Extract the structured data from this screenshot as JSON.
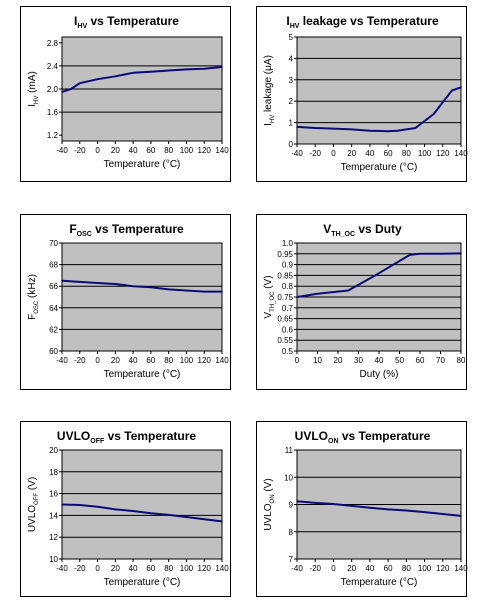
{
  "charts": [
    {
      "type": "line",
      "title": "I",
      "title_sub": "HV",
      "title_rest": " vs Temperature",
      "xlabel": "Temperature (°C)",
      "ylabel": "I",
      "ylabel_sub": "HV",
      "ylabel_rest": " (mA)",
      "xlim": [
        -40,
        140
      ],
      "ylim": [
        1.1,
        2.9
      ],
      "xticks": [
        -40,
        -20,
        0,
        20,
        40,
        60,
        80,
        100,
        120,
        140
      ],
      "xtick_labels": [
        "-40",
        "-20",
        "0",
        "20",
        "40",
        "60",
        "80",
        "100",
        "120",
        "140"
      ],
      "yticks": [
        1.2,
        1.6,
        2.0,
        2.4,
        2.8
      ],
      "ytick_labels": [
        "1.2",
        "1.6",
        "2.0",
        "2.4",
        "2.8"
      ],
      "x": [
        -40,
        -30,
        -20,
        0,
        20,
        40,
        60,
        80,
        100,
        120,
        140
      ],
      "y": [
        1.95,
        2.0,
        2.1,
        2.17,
        2.22,
        2.28,
        2.3,
        2.32,
        2.34,
        2.35,
        2.38
      ],
      "grid": "horizontal",
      "line_color": "#0a0a78",
      "plot_bg": "#c0c0c0"
    },
    {
      "type": "line",
      "title": "I",
      "title_sub": "HV",
      "title_rest": " leakage vs Temperature",
      "xlabel": "Temperature (°C)",
      "ylabel": "I",
      "ylabel_sub": "HV",
      "ylabel_rest": " leakage (μA)",
      "xlim": [
        -40,
        140
      ],
      "ylim": [
        0,
        5
      ],
      "xticks": [
        -40,
        -20,
        0,
        20,
        40,
        60,
        80,
        100,
        120,
        140
      ],
      "xtick_labels": [
        "-40",
        "-20",
        "0",
        "20",
        "40",
        "60",
        "80",
        "100",
        "120",
        "140"
      ],
      "yticks": [
        0,
        1,
        2,
        3,
        4,
        5
      ],
      "ytick_labels": [
        "0",
        "1",
        "2",
        "3",
        "4",
        "5"
      ],
      "x": [
        -40,
        -20,
        0,
        20,
        40,
        60,
        70,
        90,
        110,
        130,
        140
      ],
      "y": [
        0.8,
        0.75,
        0.72,
        0.68,
        0.62,
        0.6,
        0.62,
        0.75,
        1.4,
        2.5,
        2.65
      ],
      "grid": "horizontal",
      "line_color": "#0a0a78",
      "plot_bg": "#c0c0c0"
    },
    {
      "type": "line",
      "title": "F",
      "title_sub": "OSC",
      "title_rest": " vs Temperature",
      "xlabel": "Temperature (°C)",
      "ylabel": "F",
      "ylabel_sub": "OSC",
      "ylabel_rest": " (kHz)",
      "xlim": [
        -40,
        140
      ],
      "ylim": [
        60,
        70
      ],
      "xticks": [
        -40,
        -20,
        0,
        20,
        40,
        60,
        80,
        100,
        120,
        140
      ],
      "xtick_labels": [
        "-40",
        "-20",
        "0",
        "20",
        "40",
        "60",
        "80",
        "100",
        "120",
        "140"
      ],
      "yticks": [
        60,
        62,
        64,
        66,
        68,
        70
      ],
      "ytick_labels": [
        "60",
        "62",
        "64",
        "66",
        "68",
        "70"
      ],
      "x": [
        -40,
        -20,
        0,
        20,
        40,
        60,
        80,
        100,
        120,
        140
      ],
      "y": [
        66.5,
        66.4,
        66.3,
        66.2,
        66.0,
        65.9,
        65.7,
        65.6,
        65.5,
        65.5
      ],
      "grid": "horizontal",
      "line_color": "#0a0a78",
      "plot_bg": "#c0c0c0"
    },
    {
      "type": "line",
      "title": "V",
      "title_sub": "TH_OC",
      "title_rest": " vs Duty",
      "xlabel": "Duty (%)",
      "ylabel": "V",
      "ylabel_sub": "TH_OC",
      "ylabel_rest": " (V)",
      "xlim": [
        0,
        80
      ],
      "ylim": [
        0.5,
        1.0
      ],
      "xticks": [
        0,
        10,
        20,
        30,
        40,
        50,
        60,
        70,
        80
      ],
      "xtick_labels": [
        "0",
        "10",
        "20",
        "30",
        "40",
        "50",
        "60",
        "70",
        "80"
      ],
      "yticks": [
        0.5,
        0.55,
        0.6,
        0.65,
        0.7,
        0.75,
        0.8,
        0.85,
        0.9,
        0.95,
        1.0
      ],
      "ytick_labels": [
        "0.5",
        "0.55",
        "0.6",
        "0.65",
        "0.7",
        "0.75",
        "0.8",
        "0.85",
        "0.9",
        "0.95",
        "1.0"
      ],
      "x": [
        0,
        10,
        25,
        40,
        55,
        60,
        70,
        80
      ],
      "y": [
        0.75,
        0.765,
        0.78,
        0.86,
        0.945,
        0.95,
        0.95,
        0.952
      ],
      "grid": "horizontal",
      "line_color": "#0a0a78",
      "plot_bg": "#c0c0c0"
    },
    {
      "type": "line",
      "title": "UVLO",
      "title_sub": "OFF",
      "title_rest": " vs Temperature",
      "title_prefix": "UVLO_",
      "xlabel": "Temperature (°C)",
      "ylabel": "UVLO",
      "ylabel_sub": "OFF",
      "ylabel_rest": " (V)",
      "xlim": [
        -40,
        140
      ],
      "ylim": [
        10,
        20
      ],
      "xticks": [
        -40,
        -20,
        0,
        20,
        40,
        60,
        80,
        100,
        120,
        140
      ],
      "xtick_labels": [
        "-40",
        "-20",
        "0",
        "20",
        "40",
        "60",
        "80",
        "100",
        "120",
        "140"
      ],
      "yticks": [
        10,
        12,
        14,
        16,
        18,
        20
      ],
      "ytick_labels": [
        "10",
        "12",
        "14",
        "16",
        "18",
        "20"
      ],
      "x": [
        -40,
        -20,
        0,
        20,
        40,
        60,
        80,
        100,
        120,
        140
      ],
      "y": [
        15.0,
        14.95,
        14.8,
        14.55,
        14.4,
        14.2,
        14.05,
        13.85,
        13.65,
        13.45
      ],
      "grid": "horizontal",
      "line_color": "#0a0a78",
      "plot_bg": "#c0c0c0"
    },
    {
      "type": "line",
      "title": "UVLO",
      "title_sub": "ON",
      "title_rest": " vs Temperature",
      "xlabel": "Temperature (°C)",
      "ylabel": "UVLO",
      "ylabel_sub": "ON",
      "ylabel_rest": " (V)",
      "xlim": [
        -40,
        140
      ],
      "ylim": [
        7,
        11
      ],
      "xticks": [
        -40,
        -20,
        0,
        20,
        40,
        60,
        80,
        100,
        120,
        140
      ],
      "xtick_labels": [
        "-40",
        "-20",
        "0",
        "20",
        "40",
        "60",
        "80",
        "100",
        "120",
        "140"
      ],
      "yticks": [
        7,
        8,
        9,
        10,
        11
      ],
      "ytick_labels": [
        "7",
        "8",
        "9",
        "10",
        "11"
      ],
      "x": [
        -40,
        -20,
        0,
        20,
        40,
        60,
        80,
        100,
        120,
        140
      ],
      "y": [
        9.12,
        9.06,
        9.02,
        8.95,
        8.88,
        8.82,
        8.78,
        8.72,
        8.65,
        8.58
      ],
      "grid": "horizontal",
      "line_color": "#0a0a78",
      "plot_bg": "#c0c0c0"
    }
  ],
  "chart_data": [
    {
      "type": "line",
      "title": "I_HV vs Temperature",
      "xlabel": "Temperature (°C)",
      "ylabel": "I_HV (mA)",
      "x": [
        -40,
        -30,
        -20,
        0,
        20,
        40,
        60,
        80,
        100,
        120,
        140
      ],
      "y": [
        1.95,
        2.0,
        2.1,
        2.17,
        2.22,
        2.28,
        2.3,
        2.32,
        2.34,
        2.35,
        2.38
      ],
      "xlim": [
        -40,
        140
      ],
      "ylim": [
        1.1,
        2.9
      ]
    },
    {
      "type": "line",
      "title": "I_HV leakage vs Temperature",
      "xlabel": "Temperature (°C)",
      "ylabel": "I_HV leakage (μA)",
      "x": [
        -40,
        -20,
        0,
        20,
        40,
        60,
        70,
        90,
        110,
        130,
        140
      ],
      "y": [
        0.8,
        0.75,
        0.72,
        0.68,
        0.62,
        0.6,
        0.62,
        0.75,
        1.4,
        2.5,
        2.65
      ],
      "xlim": [
        -40,
        140
      ],
      "ylim": [
        0,
        5
      ]
    },
    {
      "type": "line",
      "title": "F_OSC vs Temperature",
      "xlabel": "Temperature (°C)",
      "ylabel": "F_OSC (kHz)",
      "x": [
        -40,
        -20,
        0,
        20,
        40,
        60,
        80,
        100,
        120,
        140
      ],
      "y": [
        66.5,
        66.4,
        66.3,
        66.2,
        66.0,
        65.9,
        65.7,
        65.6,
        65.5,
        65.5
      ],
      "xlim": [
        -40,
        140
      ],
      "ylim": [
        60,
        70
      ]
    },
    {
      "type": "line",
      "title": "V_TH_OC vs Duty",
      "xlabel": "Duty (%)",
      "ylabel": "V_TH_OC (V)",
      "x": [
        0,
        10,
        25,
        40,
        55,
        60,
        70,
        80
      ],
      "y": [
        0.75,
        0.765,
        0.78,
        0.86,
        0.945,
        0.95,
        0.95,
        0.952
      ],
      "xlim": [
        0,
        80
      ],
      "ylim": [
        0.5,
        1.0
      ]
    },
    {
      "type": "line",
      "title": "UVLO_OFF vs Temperature",
      "xlabel": "Temperature (°C)",
      "ylabel": "UVLO_OFF (V)",
      "x": [
        -40,
        -20,
        0,
        20,
        40,
        60,
        80,
        100,
        120,
        140
      ],
      "y": [
        15.0,
        14.95,
        14.8,
        14.55,
        14.4,
        14.2,
        14.05,
        13.85,
        13.65,
        13.45
      ],
      "xlim": [
        -40,
        140
      ],
      "ylim": [
        10,
        20
      ]
    },
    {
      "type": "line",
      "title": "UVLO_ON vs Temperature",
      "xlabel": "Temperature (°C)",
      "ylabel": "UVLO_ON (V)",
      "x": [
        -40,
        -20,
        0,
        20,
        40,
        60,
        80,
        100,
        120,
        140
      ],
      "y": [
        9.12,
        9.06,
        9.02,
        8.95,
        8.88,
        8.82,
        8.78,
        8.72,
        8.65,
        8.58
      ],
      "xlim": [
        -40,
        140
      ],
      "ylim": [
        7,
        11
      ]
    }
  ]
}
